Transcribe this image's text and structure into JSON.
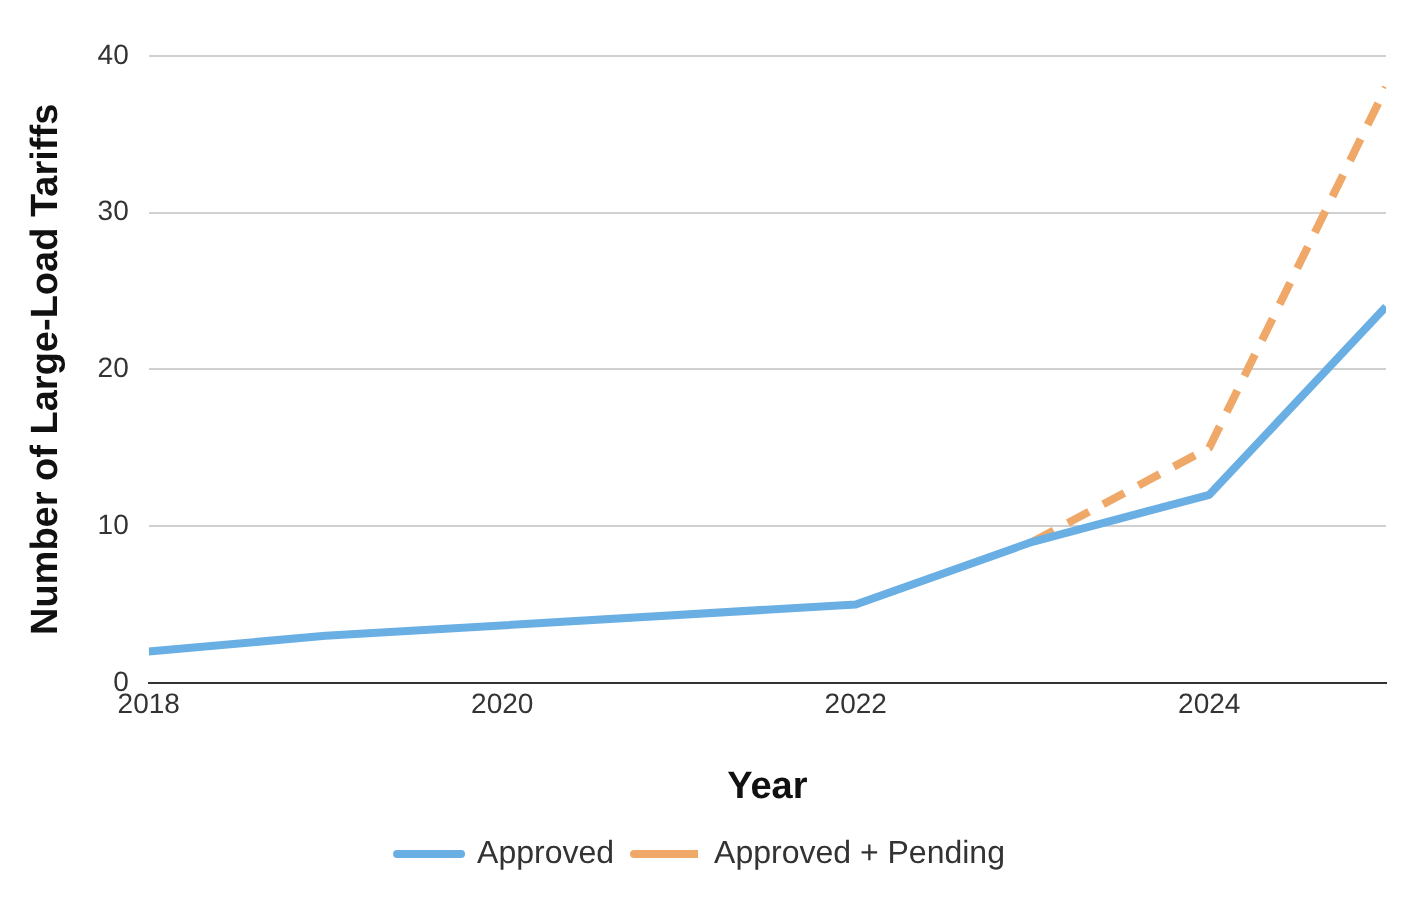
{
  "chart_data": {
    "type": "line",
    "xlabel": "Year",
    "ylabel": "Number of Large-Load Tariffs",
    "xlim": [
      2018,
      2025
    ],
    "xticks": [
      2018,
      2020,
      2022,
      2024
    ],
    "ylim": [
      0,
      40
    ],
    "yticks": [
      0,
      10,
      20,
      30,
      40
    ],
    "grid": "y",
    "legend": "bottom",
    "marker": "none",
    "series": [
      {
        "name": "Approved",
        "color": "#6aafe4",
        "line_style": "solid",
        "x": [
          2018,
          2019,
          2022,
          2023,
          2024,
          2025
        ],
        "values": [
          2,
          3,
          5,
          9,
          12,
          24
        ]
      },
      {
        "name": "Approved + Pending",
        "color": "#f0a868",
        "line_style": "dashed",
        "x": [
          2023,
          2024,
          2025
        ],
        "values": [
          9,
          15,
          38
        ]
      }
    ]
  }
}
